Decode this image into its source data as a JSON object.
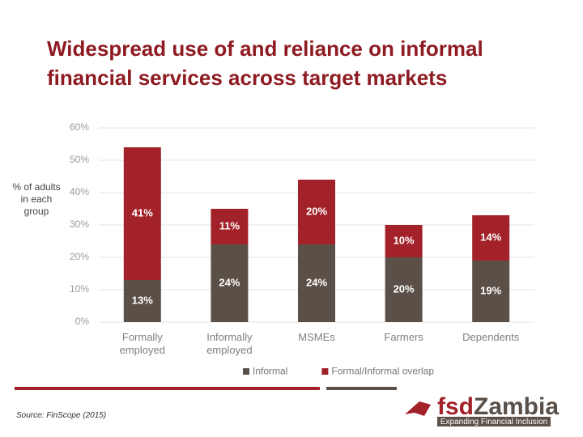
{
  "header": {
    "title": "Widespread use of and reliance on informal financial services across target markets"
  },
  "chart_data": {
    "type": "stacked-bar",
    "y_label": "% of adults in each group",
    "categories": [
      "Formally employed",
      "Informally employed",
      "MSMEs",
      "Farmers",
      "Dependents"
    ],
    "series": [
      {
        "name": "Informal",
        "color": "#5b5047",
        "values": [
          13,
          24,
          24,
          20,
          19
        ],
        "value_labels": [
          "13%",
          "24%",
          "24%",
          "20%",
          "19%"
        ]
      },
      {
        "name": "Formal/Informal overlap",
        "color": "#a3222a",
        "values": [
          41,
          11,
          20,
          10,
          14
        ],
        "value_labels": [
          "41%",
          "11%",
          "20%",
          "10%",
          "14%"
        ]
      }
    ],
    "ylim": [
      0,
      60
    ],
    "yticks": [
      {
        "value": 0,
        "label": "0%"
      },
      {
        "value": 10,
        "label": "10%"
      },
      {
        "value": 20,
        "label": "20%"
      },
      {
        "value": 30,
        "label": "30%"
      },
      {
        "value": 40,
        "label": "40%"
      },
      {
        "value": 50,
        "label": "50%"
      },
      {
        "value": 60,
        "label": "60%"
      }
    ],
    "grid": true
  },
  "footer": {
    "source": "Source: FinScope (2015)",
    "logo_prefix": "fsd",
    "logo_name": "Zambia",
    "logo_tagline": "Expanding Financial Inclusion"
  }
}
